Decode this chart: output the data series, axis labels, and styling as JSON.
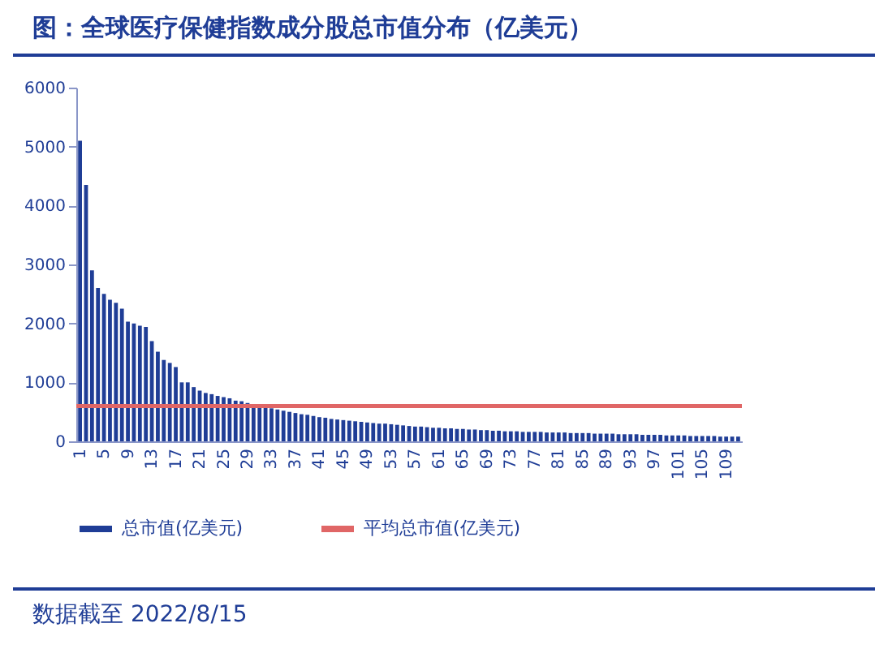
{
  "chart_data": {
    "type": "bar",
    "title": "图：全球医疗保健指数成分股总市值分布（亿美元）",
    "categories": [
      "1",
      null,
      null,
      null,
      "5",
      null,
      null,
      null,
      "9",
      null,
      null,
      null,
      "13",
      null,
      null,
      null,
      "17",
      null,
      null,
      null,
      "21",
      null,
      null,
      null,
      "25",
      null,
      null,
      null,
      "29",
      null,
      null,
      null,
      "33",
      null,
      null,
      null,
      "37",
      null,
      null,
      null,
      "41",
      null,
      null,
      null,
      "45",
      null,
      null,
      null,
      "49",
      null,
      null,
      null,
      "53",
      null,
      null,
      null,
      "57",
      null,
      null,
      null,
      "61",
      null,
      null,
      null,
      "65",
      null,
      null,
      null,
      "69",
      null,
      null,
      null,
      "73",
      null,
      null,
      null,
      "77",
      null,
      null,
      null,
      "81",
      null,
      null,
      null,
      "85",
      null,
      null,
      null,
      "89",
      null,
      null,
      null,
      "93",
      null,
      null,
      null,
      "97",
      null,
      null,
      null,
      "101",
      null,
      null,
      null,
      "105",
      null,
      null,
      null,
      "109",
      null,
      null
    ],
    "series": [
      {
        "name": "总市值(亿美元)",
        "color": "#1f3d96",
        "values": [
          5100,
          4350,
          2900,
          2600,
          2500,
          2400,
          2350,
          2250,
          2030,
          2000,
          1960,
          1940,
          1700,
          1520,
          1380,
          1330,
          1260,
          1000,
          1000,
          920,
          860,
          820,
          800,
          770,
          750,
          730,
          690,
          680,
          650,
          630,
          600,
          580,
          560,
          540,
          520,
          500,
          480,
          460,
          450,
          430,
          410,
          400,
          380,
          370,
          360,
          350,
          340,
          330,
          320,
          310,
          300,
          300,
          290,
          280,
          270,
          260,
          250,
          250,
          240,
          230,
          230,
          220,
          220,
          210,
          210,
          200,
          200,
          190,
          190,
          180,
          180,
          170,
          170,
          170,
          160,
          160,
          160,
          160,
          150,
          150,
          150,
          150,
          140,
          140,
          140,
          140,
          130,
          130,
          130,
          130,
          120,
          120,
          120,
          120,
          110,
          110,
          110,
          110,
          100,
          100,
          100,
          100,
          90,
          90,
          90,
          90,
          90,
          80,
          80,
          80,
          80
        ]
      }
    ],
    "ylim": [
      0,
      6000
    ],
    "yticks": [
      0,
      1000,
      2000,
      3000,
      4000,
      5000,
      6000
    ],
    "grid": false,
    "legend": "bottom",
    "ref_lines": [
      {
        "axis": "y",
        "value": 600,
        "label": "平均总市值(亿美元)",
        "color": "#e06666"
      }
    ],
    "annotations": [
      "数据截至 2022/8/15"
    ]
  }
}
